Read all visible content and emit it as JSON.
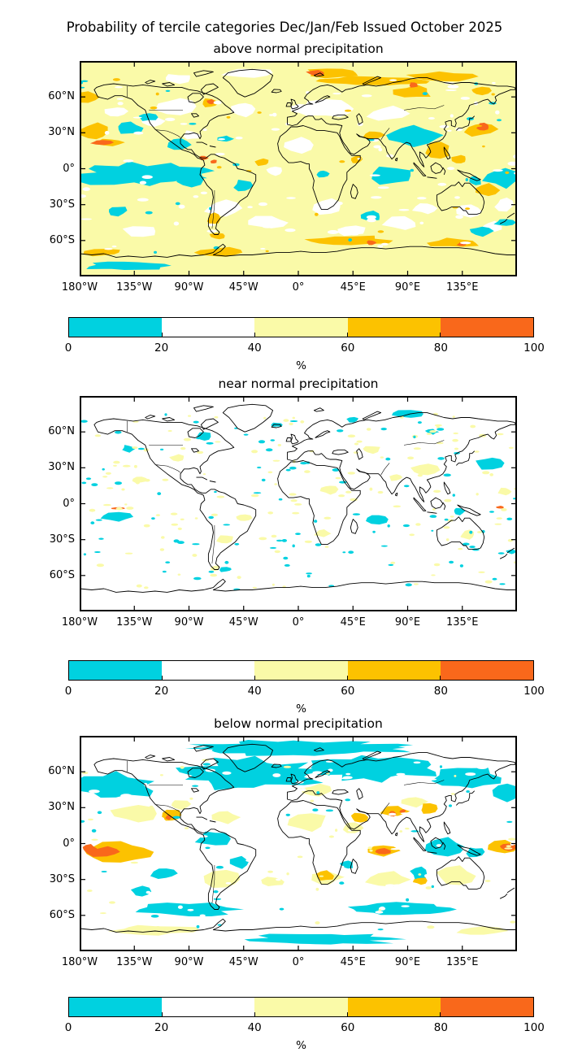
{
  "figure_title": "Probability of tercile categories Dec/Jan/Feb Issued October 2025",
  "panels": [
    {
      "title": "above normal precipitation"
    },
    {
      "title": "near normal precipitation"
    },
    {
      "title": "below normal precipitation"
    }
  ],
  "axes": {
    "lon_ticks": [
      "180°W",
      "135°W",
      "90°W",
      "45°W",
      "0°",
      "45°E",
      "90°E",
      "135°E"
    ],
    "lat_ticks": [
      "60°N",
      "30°N",
      "0°",
      "30°S",
      "60°S"
    ]
  },
  "colorbar": {
    "ticks": [
      "0",
      "20",
      "40",
      "60",
      "80",
      "100"
    ],
    "unit_label": "%",
    "bin_edges": [
      0,
      20,
      40,
      60,
      80,
      100
    ],
    "segment_colors": [
      "#00D1E0",
      "#FFFFFF",
      "#FAFAA8",
      "#FCC200",
      "#F9681B"
    ],
    "segment_ranges": [
      "0-20",
      "20-40",
      "40-60",
      "60-80",
      "80-100"
    ]
  },
  "map_style": {
    "coastline_color": "#000000",
    "background_color": "#FFFFFF"
  }
}
